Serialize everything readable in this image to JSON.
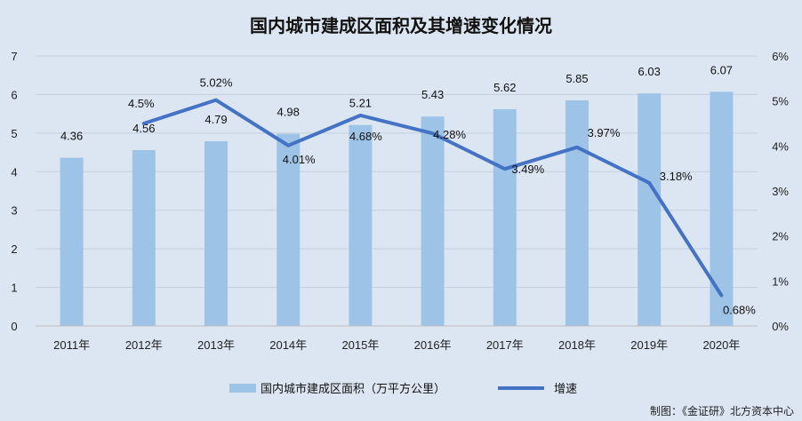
{
  "chart_data": {
    "type": "bar",
    "title": "国内城市建成区面积及其增速变化情况",
    "categories": [
      "2011年",
      "2012年",
      "2013年",
      "2014年",
      "2015年",
      "2016年",
      "2017年",
      "2018年",
      "2019年",
      "2020年"
    ],
    "series": [
      {
        "name": "国内城市建成区面积（万平方公里）",
        "type": "bar",
        "axis": "left",
        "color": "#9dc3e6",
        "values": [
          4.36,
          4.56,
          4.79,
          4.98,
          5.21,
          5.43,
          5.62,
          5.85,
          6.03,
          6.07
        ],
        "labels": [
          "4.36",
          "4.56",
          "4.79",
          "4.98",
          "5.21",
          "5.43",
          "5.62",
          "5.85",
          "6.03",
          "6.07"
        ]
      },
      {
        "name": "增速",
        "type": "line",
        "axis": "right",
        "color": "#4472c4",
        "values": [
          null,
          4.5,
          5.02,
          4.01,
          4.68,
          4.28,
          3.49,
          3.97,
          3.18,
          0.68
        ],
        "labels": [
          "",
          "4.5%",
          "5.02%",
          "4.01%",
          "4.68%",
          "4.28%",
          "3.49%",
          "3.97%",
          "3.18%",
          "0.68%"
        ]
      }
    ],
    "y_left": {
      "range": [
        0,
        7
      ],
      "ticks": [
        "0",
        "1",
        "2",
        "3",
        "4",
        "5",
        "6",
        "7"
      ]
    },
    "y_right": {
      "range": [
        0,
        6
      ],
      "ticks": [
        "0%",
        "1%",
        "2%",
        "3%",
        "4%",
        "5%",
        "6%"
      ]
    },
    "grid": true,
    "legend_position": "bottom"
  },
  "source": "制图：《金证研》北方资本中心"
}
